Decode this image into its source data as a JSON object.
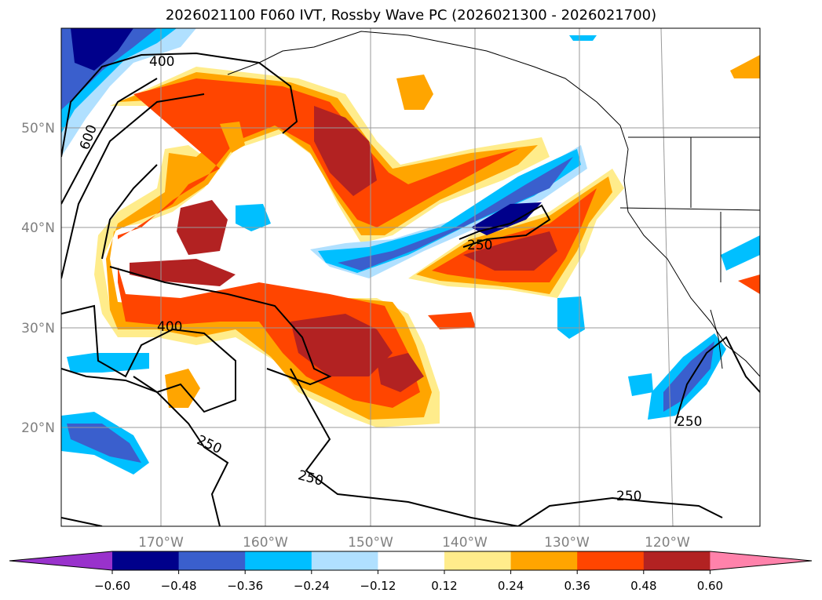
{
  "title": "2026021100 F060 IVT, Rossby Wave PC (2026021300 - 2026021700)",
  "map": {
    "lat_labels": [
      "50°N",
      "40°N",
      "30°N",
      "20°N"
    ],
    "lon_labels": [
      "170°W",
      "160°W",
      "150°W",
      "140°W",
      "130°W",
      "120°W"
    ],
    "contour_labels": [
      "400",
      "600",
      "400",
      "250",
      "250",
      "250",
      "250",
      "250"
    ]
  },
  "colorbar": {
    "colors": [
      "#9932cc",
      "#00008b",
      "#3a5fcd",
      "#00bfff",
      "#b0e0ff",
      "#ffffff",
      "#ffec8b",
      "#ffa500",
      "#ff4500",
      "#b22222",
      "#ff82ab"
    ],
    "ticks": [
      "−0.60",
      "−0.48",
      "−0.36",
      "−0.24",
      "−0.12",
      "0.12",
      "0.24",
      "0.36",
      "0.48",
      "0.60"
    ]
  }
}
